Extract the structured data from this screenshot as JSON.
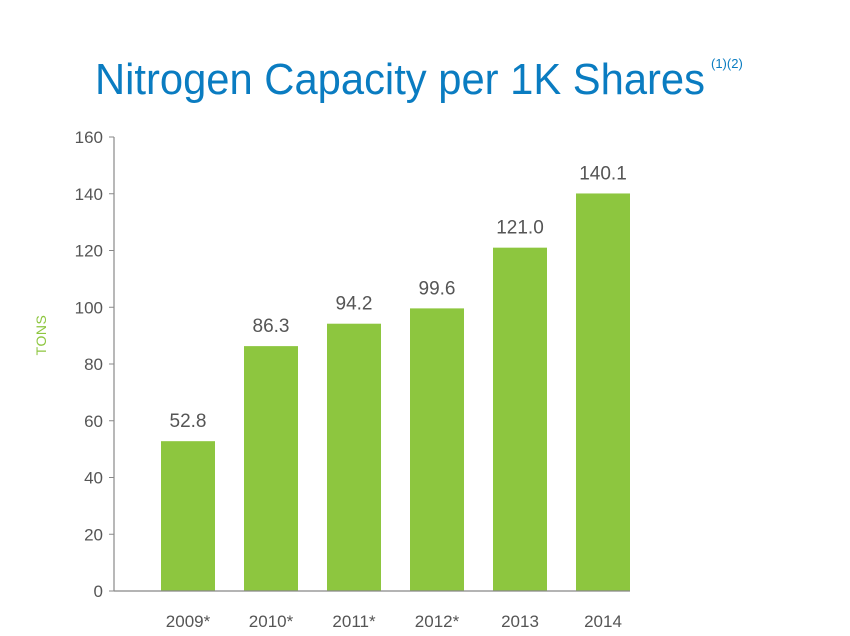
{
  "chart_data": {
    "type": "bar",
    "title": "Nitrogen Capacity per 1K Shares",
    "title_superscript": "(1)(2)",
    "ylabel": "TONS",
    "xlabel": "",
    "categories": [
      "2009*",
      "2010*",
      "2011*",
      "2012*",
      "2013",
      "2014"
    ],
    "values": [
      52.8,
      86.3,
      94.2,
      99.6,
      121.0,
      140.1
    ],
    "value_labels": [
      "52.8",
      "86.3",
      "94.2",
      "99.6",
      "121.0",
      "140.1"
    ],
    "ylim": [
      0,
      160
    ],
    "yticks": [
      "0",
      "20",
      "40",
      "60",
      "80",
      "100",
      "120",
      "140",
      "160"
    ],
    "grid": false,
    "legend": "none",
    "colors": {
      "bar": "#8dc63f",
      "title": "#0a7cc1",
      "ylabel": "#8dc63f",
      "axis": "#888888",
      "text": "#555555"
    }
  }
}
